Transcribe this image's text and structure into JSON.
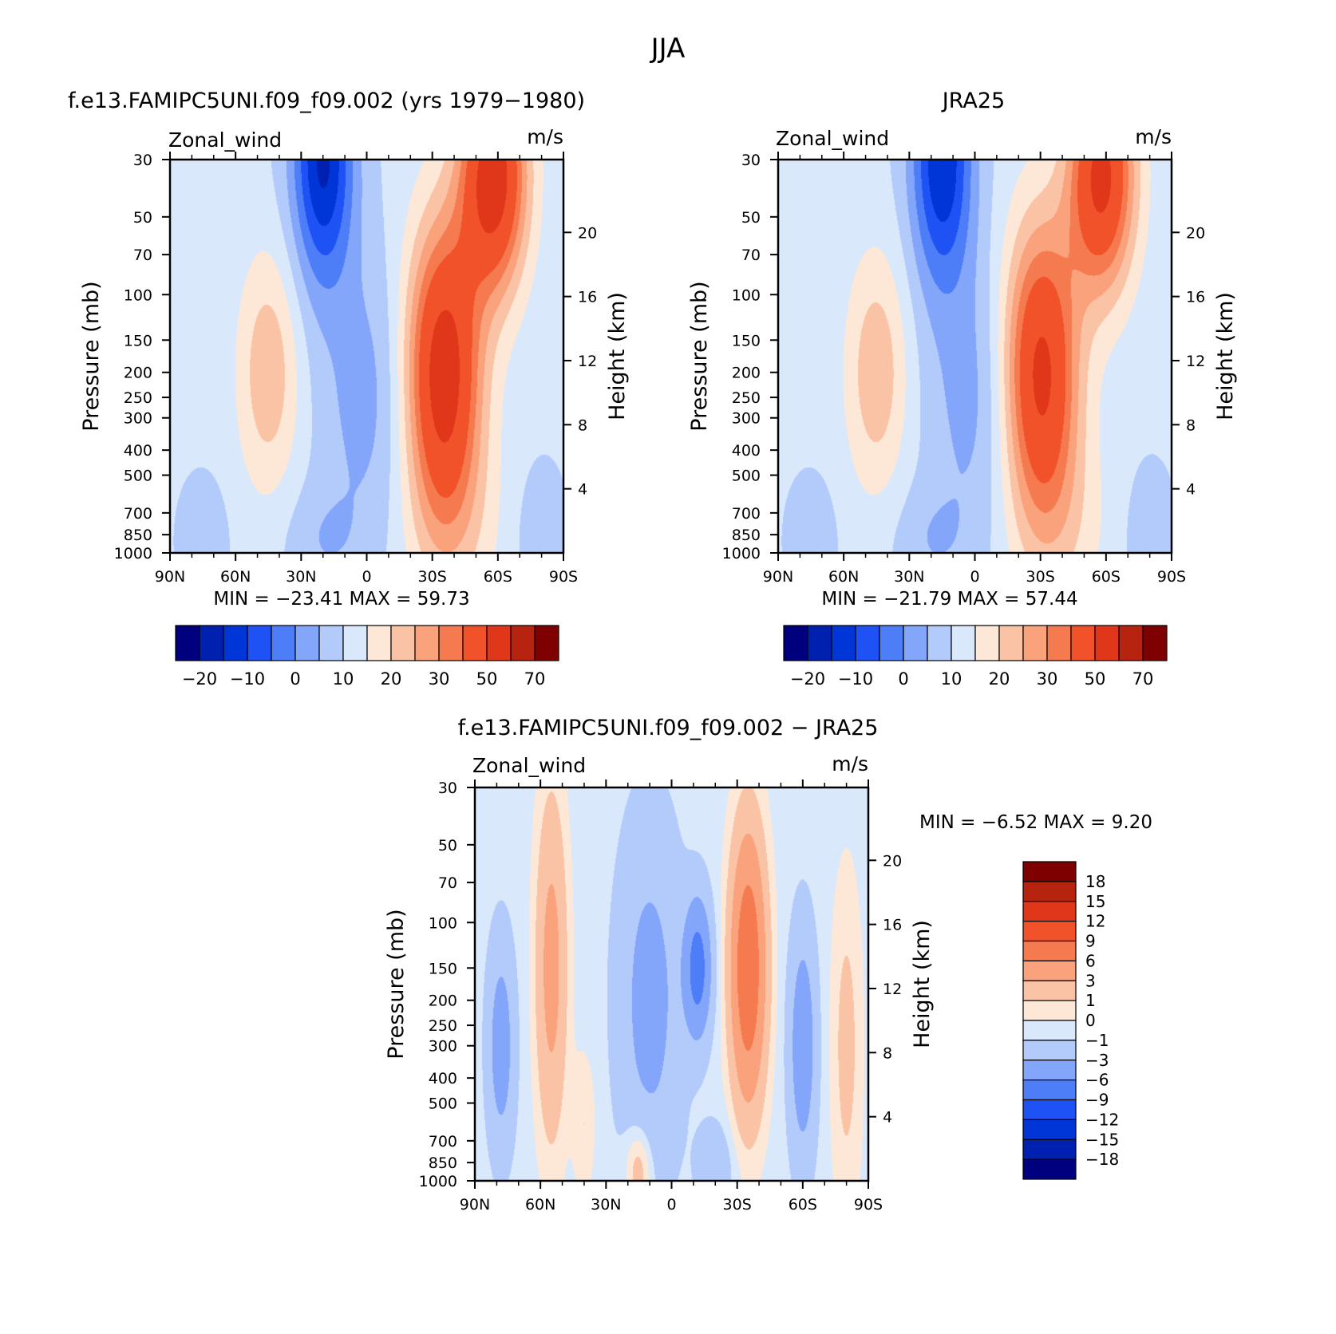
{
  "figure": {
    "title": "JJA"
  },
  "panels": [
    {
      "id": "model",
      "title": "f.e13.FAMIPC5UNI.f09_f09.002 (yrs 1979−1980)",
      "var_label": "Zonal_wind",
      "units": "m/s",
      "min_max": "MIN =  −23.41   MAX =   59.73"
    },
    {
      "id": "obs",
      "title": "JRA25",
      "var_label": "Zonal_wind",
      "units": "m/s",
      "min_max": "MIN =  −21.79   MAX =   57.44"
    },
    {
      "id": "diff",
      "title": "f.e13.FAMIPC5UNI.f09_f09.002 − JRA25",
      "var_label": "Zonal_wind",
      "units": "m/s",
      "min_max": "MIN =   −6.52   MAX =    9.20"
    }
  ],
  "axes": {
    "ylabel_left": "Pressure (mb)",
    "ylabel_right": "Height (km)",
    "pressure_ticks": [
      "30",
      "50",
      "70",
      "100",
      "150",
      "200",
      "250",
      "300",
      "400",
      "500",
      "700",
      "850",
      "1000"
    ],
    "height_ticks": [
      "4",
      "8",
      "12",
      "16",
      "20"
    ],
    "lat_ticks": [
      "90N",
      "60N",
      "30N",
      "0",
      "30S",
      "60S",
      "90S"
    ]
  },
  "colorbars": {
    "main": {
      "colors": [
        "#00007f",
        "#0020b0",
        "#0035d8",
        "#1f52f5",
        "#4d7ef8",
        "#83a5fa",
        "#b3cbfb",
        "#d9e8fb",
        "#fde8d8",
        "#fbc3a6",
        "#f9a27c",
        "#f57a4f",
        "#f2522a",
        "#e0361a",
        "#b6230f",
        "#7f0000"
      ],
      "labels": [
        "−20",
        "−10",
        "0",
        "10",
        "20",
        "30",
        "50",
        "70"
      ]
    },
    "diff": {
      "colors": [
        "#7f0000",
        "#b6230f",
        "#e0361a",
        "#f2522a",
        "#f57a4f",
        "#f9a27c",
        "#fbc3a6",
        "#fde8d8",
        "#d9e8fb",
        "#b3cbfb",
        "#83a5fa",
        "#4d7ef8",
        "#1f52f5",
        "#0035d8",
        "#0020b0",
        "#00007f"
      ],
      "labels": [
        "18",
        "15",
        "12",
        "9",
        "6",
        "3",
        "1",
        "0",
        "−1",
        "−3",
        "−6",
        "−9",
        "−12",
        "−15",
        "−18"
      ]
    }
  },
  "chart_data": [
    {
      "type": "heatmap",
      "title": "f.e13.FAMIPC5UNI.f09_f09.002 (yrs 1979−1980)",
      "variable": "Zonal_wind",
      "units": "m/s",
      "x": "latitude 90N to 90S",
      "y": "pressure 1000 to 30 mb (log)",
      "levels": [
        -25,
        -20,
        -15,
        -10,
        -5,
        0,
        5,
        10,
        15,
        20,
        25,
        30,
        40,
        50,
        60,
        70
      ],
      "min": -23.41,
      "max": 59.73,
      "features": [
        {
          "lat": -35,
          "p": 200,
          "value": 45
        },
        {
          "lat": -58,
          "p": 30,
          "value": 59.7
        },
        {
          "lat": 45,
          "p": 200,
          "value": 20
        },
        {
          "lat": 20,
          "p": 30,
          "value": -23.4
        }
      ]
    },
    {
      "type": "heatmap",
      "title": "JRA25",
      "variable": "Zonal_wind",
      "units": "m/s",
      "x": "latitude 90N to 90S",
      "y": "pressure 1000 to 30 mb (log)",
      "levels": [
        -25,
        -20,
        -15,
        -10,
        -5,
        0,
        5,
        10,
        15,
        20,
        25,
        30,
        40,
        50,
        60,
        70
      ],
      "min": -21.79,
      "max": 57.44,
      "features": [
        {
          "lat": -30,
          "p": 200,
          "value": 42
        },
        {
          "lat": -58,
          "p": 30,
          "value": 57.4
        },
        {
          "lat": 45,
          "p": 200,
          "value": 20
        },
        {
          "lat": 15,
          "p": 30,
          "value": -21.8
        }
      ]
    },
    {
      "type": "heatmap",
      "title": "f.e13.FAMIPC5UNI.f09_f09.002 − JRA25",
      "variable": "Zonal_wind",
      "units": "m/s",
      "x": "latitude 90N to 90S",
      "y": "pressure 1000 to 30 mb (log)",
      "levels": [
        -18,
        -15,
        -12,
        -9,
        -6,
        -3,
        -1,
        0,
        1,
        3,
        6,
        9,
        12,
        15,
        18
      ],
      "min": -6.52,
      "max": 9.2,
      "features": [
        {
          "lat": -35,
          "p": 150,
          "value": 9.2
        },
        {
          "lat": 55,
          "p": 150,
          "value": 4
        },
        {
          "lat": -12,
          "p": 150,
          "value": -6.5
        },
        {
          "lat": 78,
          "p": 300,
          "value": -4
        },
        {
          "lat": -60,
          "p": 300,
          "value": -4
        }
      ]
    }
  ]
}
